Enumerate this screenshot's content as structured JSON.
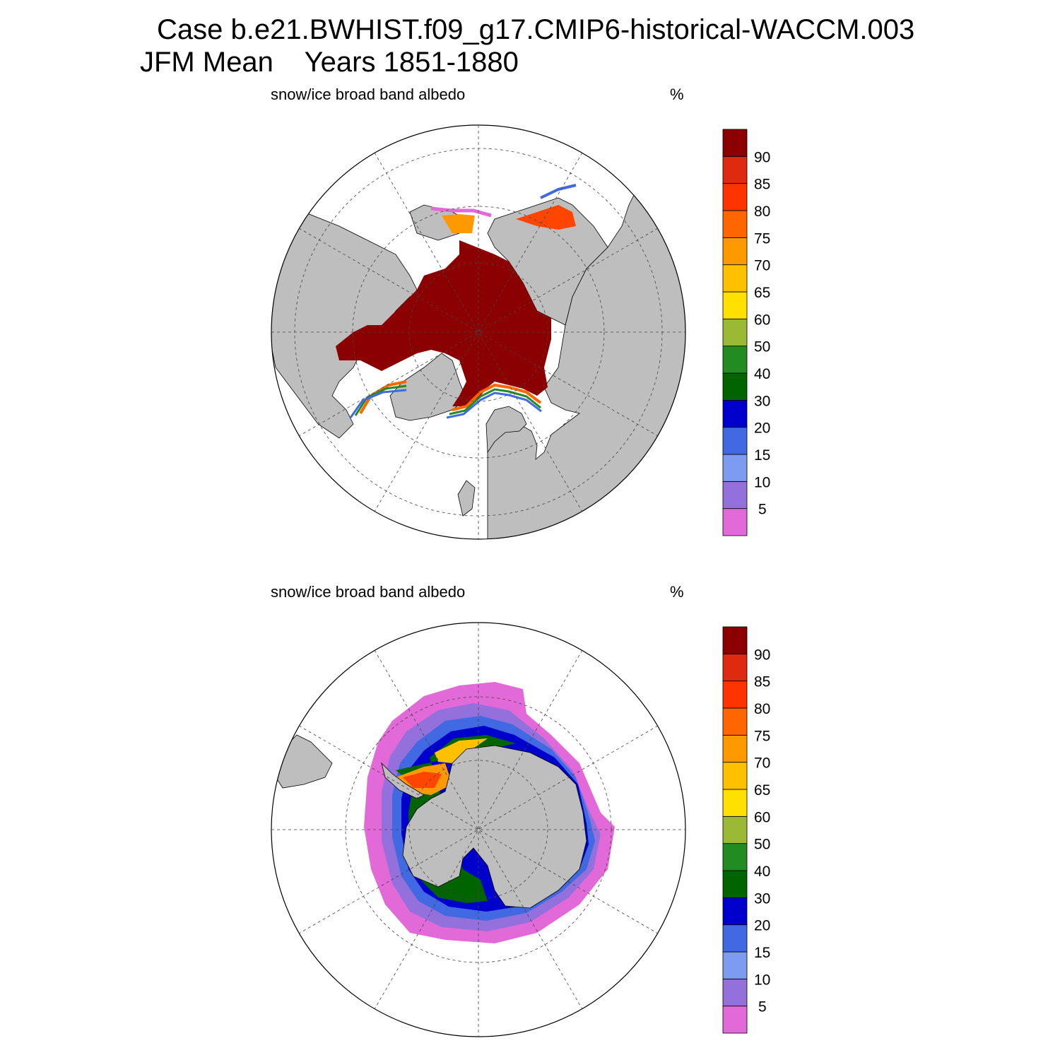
{
  "title": {
    "line1": "Case b.e21.BWHIST.f09_g17.CMIP6-historical-WACCM.003",
    "line2": "JFM Mean    Years 1851-1880"
  },
  "panels": [
    {
      "hemisphere": "north",
      "field_label": "snow/ice broad band albedo",
      "units": "%"
    },
    {
      "hemisphere": "south",
      "field_label": "snow/ice broad band albedo",
      "units": "%"
    }
  ],
  "colorbar": {
    "levels": [
      "5",
      "10",
      "15",
      "20",
      "30",
      "40",
      "50",
      "60",
      "65",
      "70",
      "75",
      "80",
      "85",
      "90"
    ],
    "colors": [
      "#e26ad8",
      "#9370db",
      "#7b9cf0",
      "#4169e1",
      "#0000cd",
      "#006400",
      "#228b22",
      "#9aba35",
      "#ffe000",
      "#ffc000",
      "#ff9900",
      "#ff6600",
      "#ff3300",
      "#dd2a10",
      "#8b0000"
    ]
  },
  "colors": {
    "land": "#bebebe",
    "ocean": "#ffffff",
    "grid": "#333333"
  }
}
